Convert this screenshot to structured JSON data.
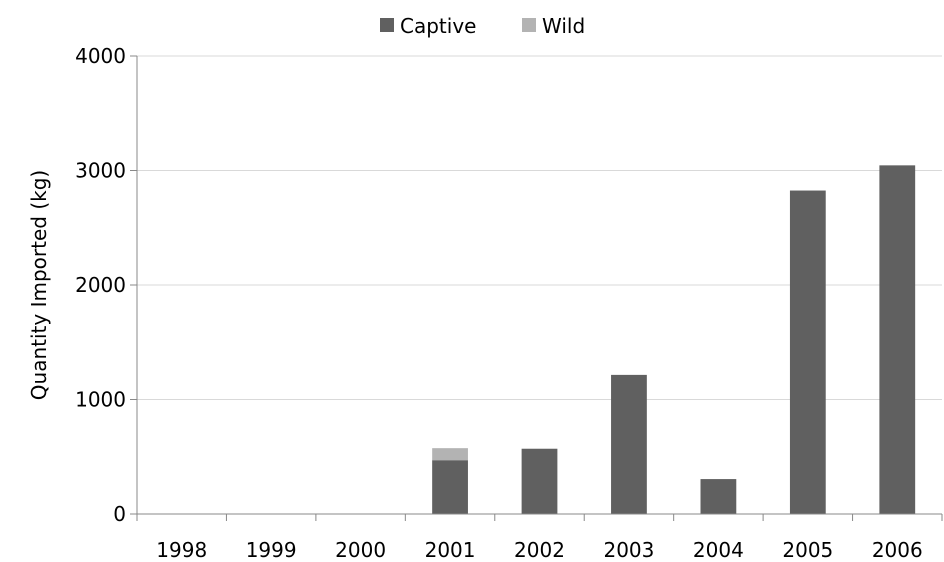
{
  "chart_data": {
    "type": "bar",
    "stacked": true,
    "categories": [
      "1998",
      "1999",
      "2000",
      "2001",
      "2002",
      "2003",
      "2004",
      "2005",
      "2006"
    ],
    "series": [
      {
        "name": "Captive",
        "color": "#606060",
        "values": [
          0,
          0,
          0,
          470,
          570,
          1215,
          305,
          2825,
          3045
        ]
      },
      {
        "name": "Wild",
        "color": "#b3b3b3",
        "values": [
          0,
          0,
          0,
          105,
          0,
          0,
          0,
          0,
          0
        ]
      }
    ],
    "ylabel": "Quantity Imported (kg)",
    "ylim": [
      0,
      4000
    ],
    "yticks": [
      0,
      1000,
      2000,
      3000,
      4000
    ],
    "grid": true,
    "legend_position": "top"
  }
}
